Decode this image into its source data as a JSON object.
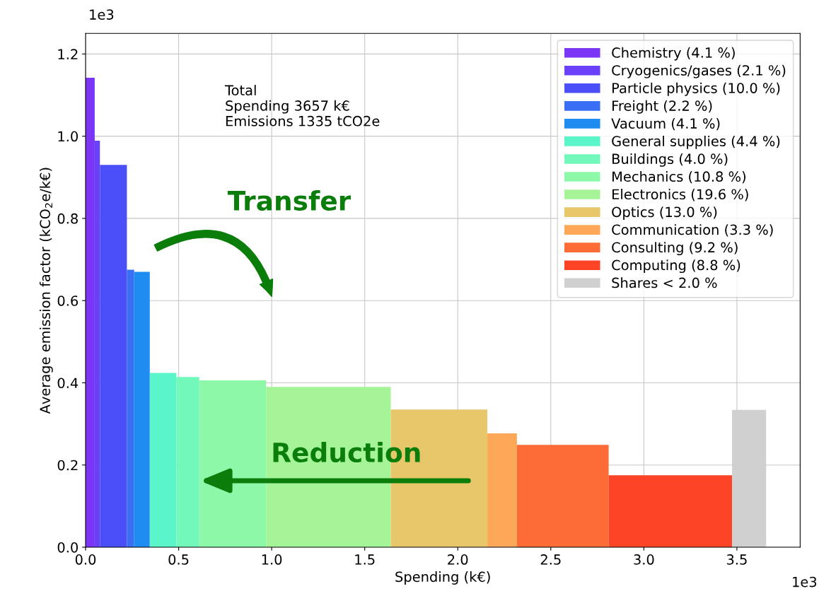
{
  "chart_data": {
    "type": "histogram",
    "xlabel": "Spending (k€)",
    "ylabel": "Average emission factor (kCO$_{2}$e/k€)",
    "annotations": [
      "Total\nSpending 3657 k€\nEmissions 1335 tCO2e",
      "Transfer",
      "Reduction",
      "1e3",
      "1e3"
    ],
    "xlim": [
      0,
      3.84
    ],
    "ylim": [
      0,
      1.25
    ],
    "xticks": [
      {
        "value": 0,
        "label": "0.0"
      },
      0.5,
      {
        "value": 1,
        "label": "1.0"
      },
      1.5,
      {
        "value": 2,
        "label": "2.0"
      },
      2.5,
      {
        "value": 3,
        "label": "3.0"
      },
      3.5
    ],
    "yticks": [
      {
        "value": 0,
        "label": "0.0"
      },
      0.2,
      0.4,
      0.6,
      0.8,
      {
        "value": 1,
        "label": "1.0"
      },
      1.2
    ],
    "grid": true,
    "legend": "top right",
    "bins": [
      0,
      0.049,
      0.077,
      0.222,
      0.261,
      0.345,
      0.488,
      0.611,
      0.97,
      1.64,
      2.159,
      2.318,
      2.811,
      3.474,
      3.657
    ],
    "series": [
      {
        "name": "Chemistry (4.1 %)",
        "color": "#7b35f5",
        "values": [
          1.142,
          null,
          null,
          null,
          null,
          null,
          null,
          null,
          null,
          null,
          null,
          null,
          null,
          null
        ]
      },
      {
        "name": "Cryogenics/gases (2.1 %)",
        "color": "#6a40f8",
        "values": [
          null,
          0.989,
          null,
          null,
          null,
          null,
          null,
          null,
          null,
          null,
          null,
          null,
          null,
          null
        ]
      },
      {
        "name": "Particle physics (10.0 %)",
        "color": "#4b4ff7",
        "values": [
          null,
          null,
          0.93,
          null,
          null,
          null,
          null,
          null,
          null,
          null,
          null,
          null,
          null,
          null
        ]
      },
      {
        "name": "Freight (2.2 %)",
        "color": "#3a6ff5",
        "values": [
          null,
          null,
          null,
          0.675,
          null,
          null,
          null,
          null,
          null,
          null,
          null,
          null,
          null,
          null
        ]
      },
      {
        "name": "Vacuum (4.1 %)",
        "color": "#1e8cf0",
        "values": [
          null,
          null,
          null,
          null,
          0.67,
          null,
          null,
          null,
          null,
          null,
          null,
          null,
          null,
          null
        ]
      },
      {
        "name": "General supplies (4.4 %)",
        "color": "#5af5c8",
        "values": [
          null,
          null,
          null,
          null,
          null,
          0.424,
          null,
          null,
          null,
          null,
          null,
          null,
          null,
          null
        ]
      },
      {
        "name": "Buildings (4.0 %)",
        "color": "#72f8bb",
        "values": [
          null,
          null,
          null,
          null,
          null,
          null,
          0.414,
          null,
          null,
          null,
          null,
          null,
          null,
          null
        ]
      },
      {
        "name": "Mechanics (10.8 %)",
        "color": "#8cf8a8",
        "values": [
          null,
          null,
          null,
          null,
          null,
          null,
          null,
          0.406,
          null,
          null,
          null,
          null,
          null,
          null
        ]
      },
      {
        "name": "Electronics (19.6 %)",
        "color": "#a5f598",
        "values": [
          null,
          null,
          null,
          null,
          null,
          null,
          null,
          null,
          0.39,
          null,
          null,
          null,
          null,
          null
        ]
      },
      {
        "name": "Optics (13.0 %)",
        "color": "#e8c66a",
        "values": [
          null,
          null,
          null,
          null,
          null,
          null,
          null,
          null,
          null,
          0.335,
          null,
          null,
          null,
          null
        ]
      },
      {
        "name": "Communication (3.3 %)",
        "color": "#fda858",
        "values": [
          null,
          null,
          null,
          null,
          null,
          null,
          null,
          null,
          null,
          null,
          0.277,
          null,
          null,
          null
        ]
      },
      {
        "name": "Consulting (9.2 %)",
        "color": "#fd6c36",
        "values": [
          null,
          null,
          null,
          null,
          null,
          null,
          null,
          null,
          null,
          null,
          null,
          0.249,
          null,
          null
        ]
      },
      {
        "name": "Computing (8.8 %)",
        "color": "#fd4426",
        "values": [
          null,
          null,
          null,
          null,
          null,
          null,
          null,
          null,
          null,
          null,
          null,
          null,
          0.175,
          null
        ]
      },
      {
        "name": "Shares < 2.0 %",
        "color": "#d0d0d0",
        "values": [
          null,
          null,
          null,
          null,
          null,
          null,
          null,
          null,
          null,
          null,
          null,
          null,
          null,
          0.334
        ]
      }
    ]
  }
}
